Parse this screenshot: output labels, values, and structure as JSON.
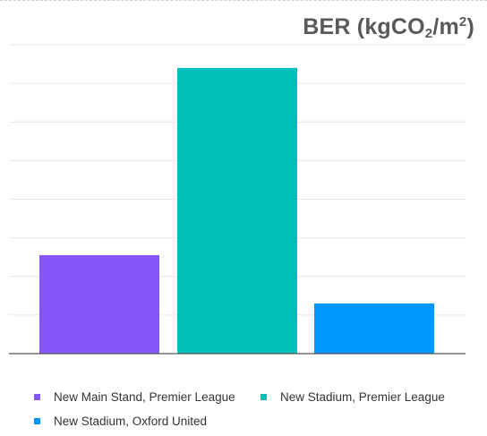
{
  "chart_data": {
    "type": "bar",
    "title_parts": [
      "BER (kgCO",
      "2",
      "/m",
      "2",
      ")"
    ],
    "categories": [
      "New Main Stand, Premier League",
      "New Stadium, Premier League",
      "New Stadium, Oxford United"
    ],
    "values": [
      2.55,
      7.4,
      1.3
    ],
    "ylim": [
      0,
      8
    ],
    "grid": true,
    "legend_position": "bottom",
    "colors": [
      "#8656fb",
      "#00c1b9",
      "#0098ff"
    ]
  }
}
